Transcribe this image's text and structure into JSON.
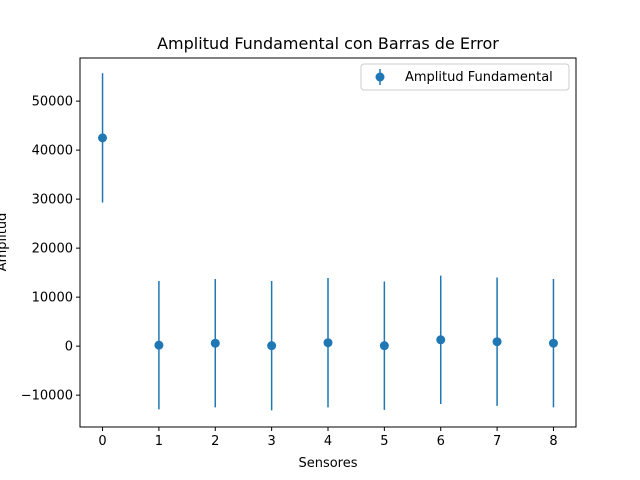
{
  "chart_data": {
    "type": "scatter",
    "title": "Amplitud Fundamental con Barras de Error",
    "xlabel": "Sensores",
    "ylabel": "Amplitud",
    "xlim": [
      -0.4,
      8.4
    ],
    "ylim": [
      -16500,
      58800
    ],
    "x_ticks": [
      "0",
      "1",
      "2",
      "3",
      "4",
      "5",
      "6",
      "7",
      "8"
    ],
    "y_ticks": [
      {
        "value": -10000,
        "label": "−10000"
      },
      {
        "value": 0,
        "label": "0"
      },
      {
        "value": 10000,
        "label": "10000"
      },
      {
        "value": 20000,
        "label": "20000"
      },
      {
        "value": 30000,
        "label": "30000"
      },
      {
        "value": 40000,
        "label": "40000"
      },
      {
        "value": 50000,
        "label": "50000"
      }
    ],
    "grid": false,
    "legend_position": "top-right",
    "series": [
      {
        "name": "Amplitud Fundamental",
        "color": "#1f77b4",
        "x": [
          0,
          1,
          2,
          3,
          4,
          5,
          6,
          7,
          8
        ],
        "y": [
          42500,
          200,
          600,
          100,
          700,
          100,
          1300,
          900,
          600
        ],
        "error": [
          13200,
          13100,
          13100,
          13200,
          13200,
          13100,
          13100,
          13100,
          13100
        ]
      }
    ]
  }
}
